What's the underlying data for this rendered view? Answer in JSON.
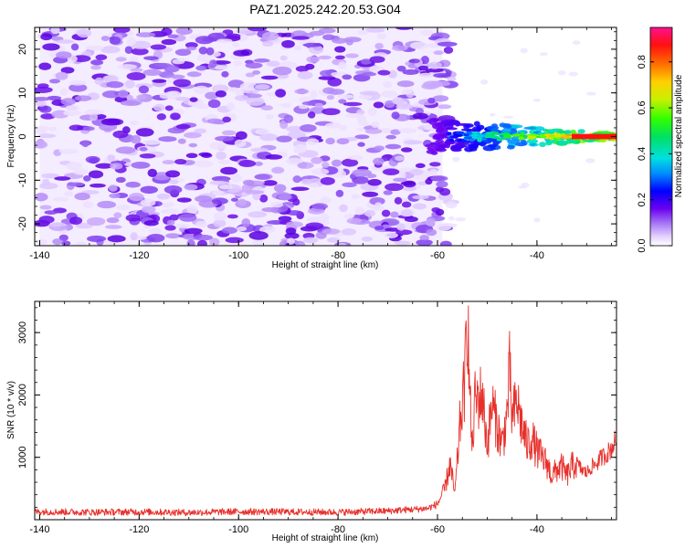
{
  "chart_data": [
    {
      "type": "heatmap",
      "title": "PAZ1.2025.242.20.53.G04",
      "xlabel": "Height of straight line (km)",
      "ylabel": "Frequency (Hz)",
      "xlim": [
        -141,
        -24
      ],
      "ylim": [
        -25,
        25
      ],
      "x_ticks": [
        -140,
        -120,
        -100,
        -80,
        -60,
        -40
      ],
      "y_ticks": [
        -20,
        -10,
        0,
        10,
        20
      ],
      "colorbar": {
        "label": "Normalized spectral amplitude",
        "range": [
          0,
          0.95
        ],
        "ticks": [
          0.0,
          0.2,
          0.4,
          0.6,
          0.8
        ]
      },
      "regions": [
        {
          "description": "diffuse low-amplitude noise",
          "x_range": [
            -140,
            -59
          ],
          "freq_range": [
            -25,
            25
          ],
          "amplitude": [
            0.0,
            0.15
          ]
        },
        {
          "description": "carrier signal",
          "x_range": [
            -62,
            -24
          ],
          "freq_center": 0,
          "amplitude_start": 0.2,
          "amplitude_end": 0.95
        }
      ]
    },
    {
      "type": "line",
      "xlabel": "Height of straight line (km)",
      "ylabel": "SNR (10 * v/v)",
      "xlim": [
        -141,
        -24
      ],
      "ylim": [
        0,
        3500
      ],
      "x_ticks": [
        -140,
        -120,
        -100,
        -80,
        -60,
        -40
      ],
      "y_ticks": [
        1000,
        2000,
        3000
      ],
      "color": "#e8302b",
      "series": [
        {
          "name": "SNR",
          "x": [
            -141,
            -130,
            -120,
            -110,
            -100,
            -90,
            -80,
            -70,
            -62,
            -60,
            -58.5,
            -57.5,
            -56.5,
            -55.5,
            -54.5,
            -54,
            -53.5,
            -53,
            -52.5,
            -51,
            -50,
            -49,
            -48,
            -47,
            -46,
            -45.5,
            -45,
            -44,
            -43,
            -42,
            -41,
            -40,
            -39,
            -38,
            -37,
            -36,
            -35,
            -34,
            -33,
            -32,
            -31,
            -30,
            -29,
            -28,
            -27,
            -26,
            -25,
            -24
          ],
          "y": [
            130,
            120,
            125,
            115,
            130,
            125,
            120,
            140,
            180,
            250,
            500,
            900,
            400,
            1500,
            2200,
            3450,
            2000,
            1100,
            1900,
            2000,
            1200,
            1850,
            1500,
            1200,
            1700,
            2400,
            1600,
            1900,
            1500,
            1200,
            1300,
            1100,
            1000,
            900,
            700,
            800,
            850,
            700,
            850,
            900,
            800,
            750,
            850,
            900,
            1000,
            1050,
            1150,
            1300
          ]
        }
      ]
    }
  ]
}
